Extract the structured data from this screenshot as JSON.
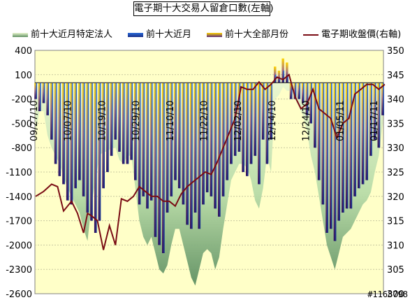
{
  "chart_data": {
    "type": "bar+area+line",
    "title": "電子期十大交易人留倉口數(左軸)",
    "legend": [
      "前十大近月特定法人",
      "前十大近月",
      "前十大全部月份",
      "電子期收盤價(右軸)"
    ],
    "y_left": {
      "ylim": [
        -2600,
        400
      ],
      "ticks": [
        400,
        100,
        -200,
        -500,
        -800,
        -1100,
        -1400,
        -1700,
        -2000,
        -2300,
        -2600
      ]
    },
    "y_right": {
      "ylim": [
        300,
        350
      ],
      "ticks": [
        350,
        345,
        340,
        335,
        330,
        325,
        320,
        315,
        310,
        305,
        300
      ]
    },
    "x_tick_labels": [
      "09/27/10",
      "10/07/10",
      "10/19/10",
      "10/29/10",
      "11/10/10",
      "11/22/10",
      "12/02/10",
      "12/14/10",
      "12/24/10",
      "01/05/11",
      "01/17/11"
    ],
    "series": [
      {
        "name": "前十大全部月份",
        "values": [
          -200,
          -350,
          -250,
          -400,
          -700,
          -1000,
          -1150,
          -1250,
          -1450,
          -1500,
          -1300,
          -1200,
          -1400,
          -1600,
          -1700,
          -1850,
          -1700,
          -1300,
          -1100,
          -900,
          -700,
          -850,
          -1000,
          -1000,
          -950,
          -1200,
          -1500,
          -1400,
          -1550,
          -1450,
          -1900,
          -2000,
          -2100,
          -1600,
          -1400,
          -1200,
          -1300,
          -1500,
          -1750,
          -1800,
          -1600,
          -1800,
          -1500,
          -1350,
          -1400,
          -1550,
          -1650,
          -1400,
          -1200,
          -1000,
          -900,
          -850,
          -1100,
          -1150,
          -1000,
          -900,
          -1250,
          -700,
          -1000,
          -700,
          200,
          150,
          300,
          250,
          -200,
          -200,
          -200,
          -250,
          -400,
          -500,
          -800,
          -1200,
          -1500,
          -1850,
          -1800,
          -1950,
          -1700,
          -1600,
          -1550,
          -1550,
          -1400,
          -1300,
          -1250,
          -1200,
          -900,
          -700,
          -800,
          -400
        ],
        "color_top": "#ffd600",
        "color_bottom": "#2e1060"
      },
      {
        "name": "前十大近月",
        "values": [
          -200,
          -350,
          -250,
          -400,
          -700,
          -1000,
          -1150,
          -1250,
          -1450,
          -1500,
          -1300,
          -1200,
          -1400,
          -1600,
          -1700,
          -1850,
          -1700,
          -1300,
          -1100,
          -900,
          -700,
          -850,
          -1000,
          -1000,
          -950,
          -1200,
          -1500,
          -1400,
          -1550,
          -1450,
          -1900,
          -2000,
          -2100,
          -1600,
          -1400,
          -1200,
          -1300,
          -1500,
          -1750,
          -1800,
          -1600,
          -1800,
          -1500,
          -1350,
          -1400,
          -1550,
          -1650,
          -1400,
          -1200,
          -1000,
          -900,
          -850,
          -1100,
          -1150,
          -1000,
          -900,
          -1250,
          -700,
          -1000,
          -700,
          100,
          50,
          150,
          100,
          -200,
          -200,
          -200,
          -250,
          -400,
          -500,
          -800,
          -1200,
          -1500,
          -1850,
          -1800,
          -1950,
          -1700,
          -1600,
          -1550,
          -1550,
          -1400,
          -1300,
          -1250,
          -1200,
          -900,
          -700,
          -800,
          -400
        ],
        "color_top": "#2a6bd8",
        "color_bottom": "#1a2f88"
      },
      {
        "name": "前十大近月特定法人",
        "type": "area",
        "values": [
          -600,
          -350,
          -350,
          -650,
          -800,
          -900,
          -1000,
          -1150,
          -1300,
          -1400,
          -1500,
          -1600,
          -1800,
          -1950,
          -1500,
          -1200,
          -900,
          -850,
          -850,
          -800,
          -800,
          -950,
          -1000,
          -900,
          -900,
          -1300,
          -1700,
          -1900,
          -2000,
          -1900,
          -2100,
          -2300,
          -2350,
          -2250,
          -2000,
          -1800,
          -1800,
          -2000,
          -2200,
          -2400,
          -2500,
          -2300,
          -2100,
          -2050,
          -2100,
          -2300,
          -2150,
          -1800,
          -1500,
          -1200,
          -1100,
          -1000,
          -1000,
          -1050,
          -1200,
          -1450,
          -1550,
          -1300,
          -900,
          -1100,
          -200,
          -150,
          -50,
          -100,
          -100,
          -200,
          -300,
          -400,
          -600,
          -900,
          -1100,
          -1400,
          -1700,
          -2000,
          -2150,
          -2300,
          -2100,
          -1900,
          -1850,
          -1800,
          -1700,
          -1600,
          -1500,
          -1450,
          -1350,
          -1100,
          -900,
          -500
        ],
        "color_light": "#e9f6d0",
        "color_dark": "#5e8f62"
      },
      {
        "name": "電子期收盤價(右軸)",
        "type": "line",
        "axis": "right",
        "x": [
          0,
          2,
          4,
          5.5,
          7,
          9,
          10.5,
          12,
          13,
          14,
          15.5,
          17,
          18.5,
          20,
          21.5,
          23,
          24.5,
          26,
          27.5,
          29,
          30.5,
          32,
          33.5,
          35,
          36.5,
          38,
          39.5,
          41,
          42.5,
          44,
          45.5,
          47,
          48.5,
          50,
          51.5,
          53,
          54.5,
          56,
          57.5,
          59,
          60.5,
          62,
          63.5,
          65,
          66.5,
          68,
          69.5,
          71,
          72.5,
          74,
          75.5,
          77,
          78.5,
          80,
          81.5,
          83,
          84.5,
          86,
          87.5
        ],
        "values": [
          320,
          321,
          322.5,
          322,
          317,
          319,
          316.5,
          312.5,
          316.5,
          316,
          315,
          309,
          314,
          310,
          319.5,
          319,
          320,
          322,
          321,
          320,
          320,
          319,
          319,
          318,
          320.5,
          322,
          323,
          324,
          325,
          324.5,
          327,
          330,
          333,
          336,
          342.5,
          342,
          342,
          343.5,
          342,
          343,
          344.5,
          344,
          345,
          340.5,
          338,
          339,
          342,
          338,
          337,
          336,
          332,
          335,
          336,
          341,
          342,
          343,
          343,
          342,
          343
        ],
        "color": "#7a0c14"
      }
    ],
    "grid": true,
    "legend_position": "top",
    "plot_background": "#ffffc8"
  },
  "watermark": "#1168798"
}
